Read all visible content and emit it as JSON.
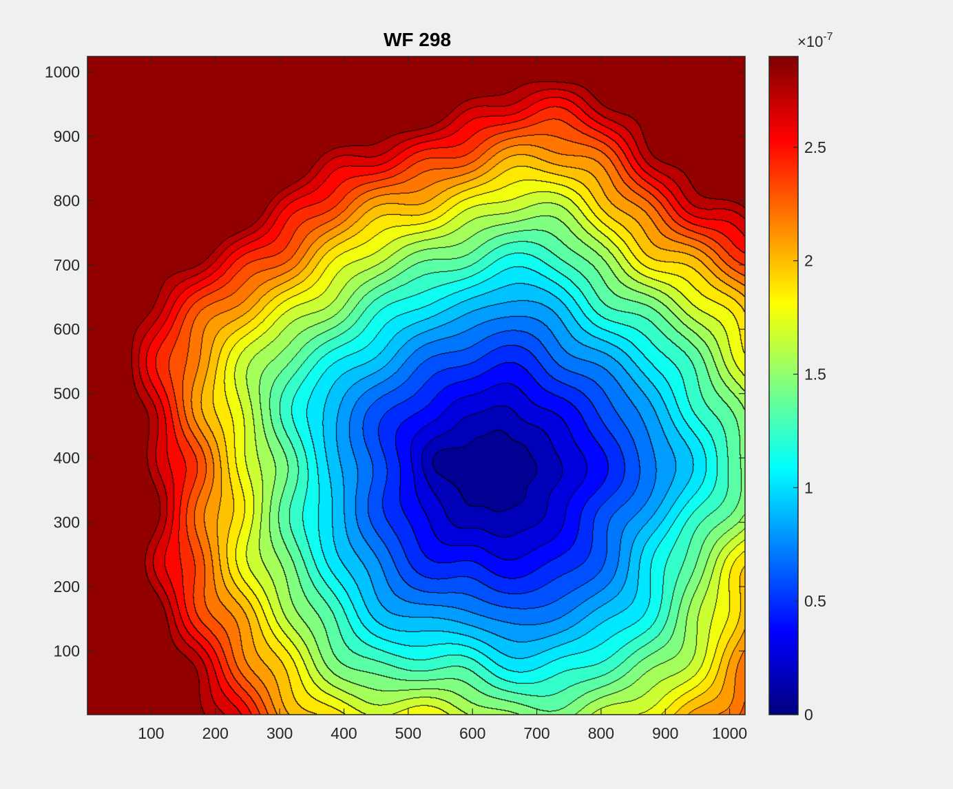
{
  "chart_data": {
    "type": "heatmap",
    "subtype": "filled-contour",
    "title": "WF 298",
    "xlabel": "",
    "ylabel": "",
    "xlim": [
      1,
      1024
    ],
    "ylim": [
      1,
      1024
    ],
    "x_ticks": [
      100,
      200,
      300,
      400,
      500,
      600,
      700,
      800,
      900,
      1000
    ],
    "y_ticks": [
      100,
      200,
      300,
      400,
      500,
      600,
      700,
      800,
      900,
      1000
    ],
    "colormap": "jet",
    "colorbar": {
      "exponent_label": "×10",
      "exponent_power": "-7",
      "limits": [
        0,
        2.9e-07
      ],
      "ticks": [
        0,
        0.5,
        1,
        1.5,
        2,
        2.5
      ],
      "tick_labels": [
        "0",
        "0.5",
        "1",
        "1.5",
        "2",
        "2.5"
      ]
    },
    "surface_model": {
      "description_units": "data units ×10^-7",
      "minimum": {
        "x": 630,
        "y": 380,
        "value": 0.0
      },
      "secondary_minimum": {
        "x": 545,
        "y": 390
      },
      "upper_left_max_value": 2.9,
      "contour_levels": 27
    },
    "grid": false
  }
}
